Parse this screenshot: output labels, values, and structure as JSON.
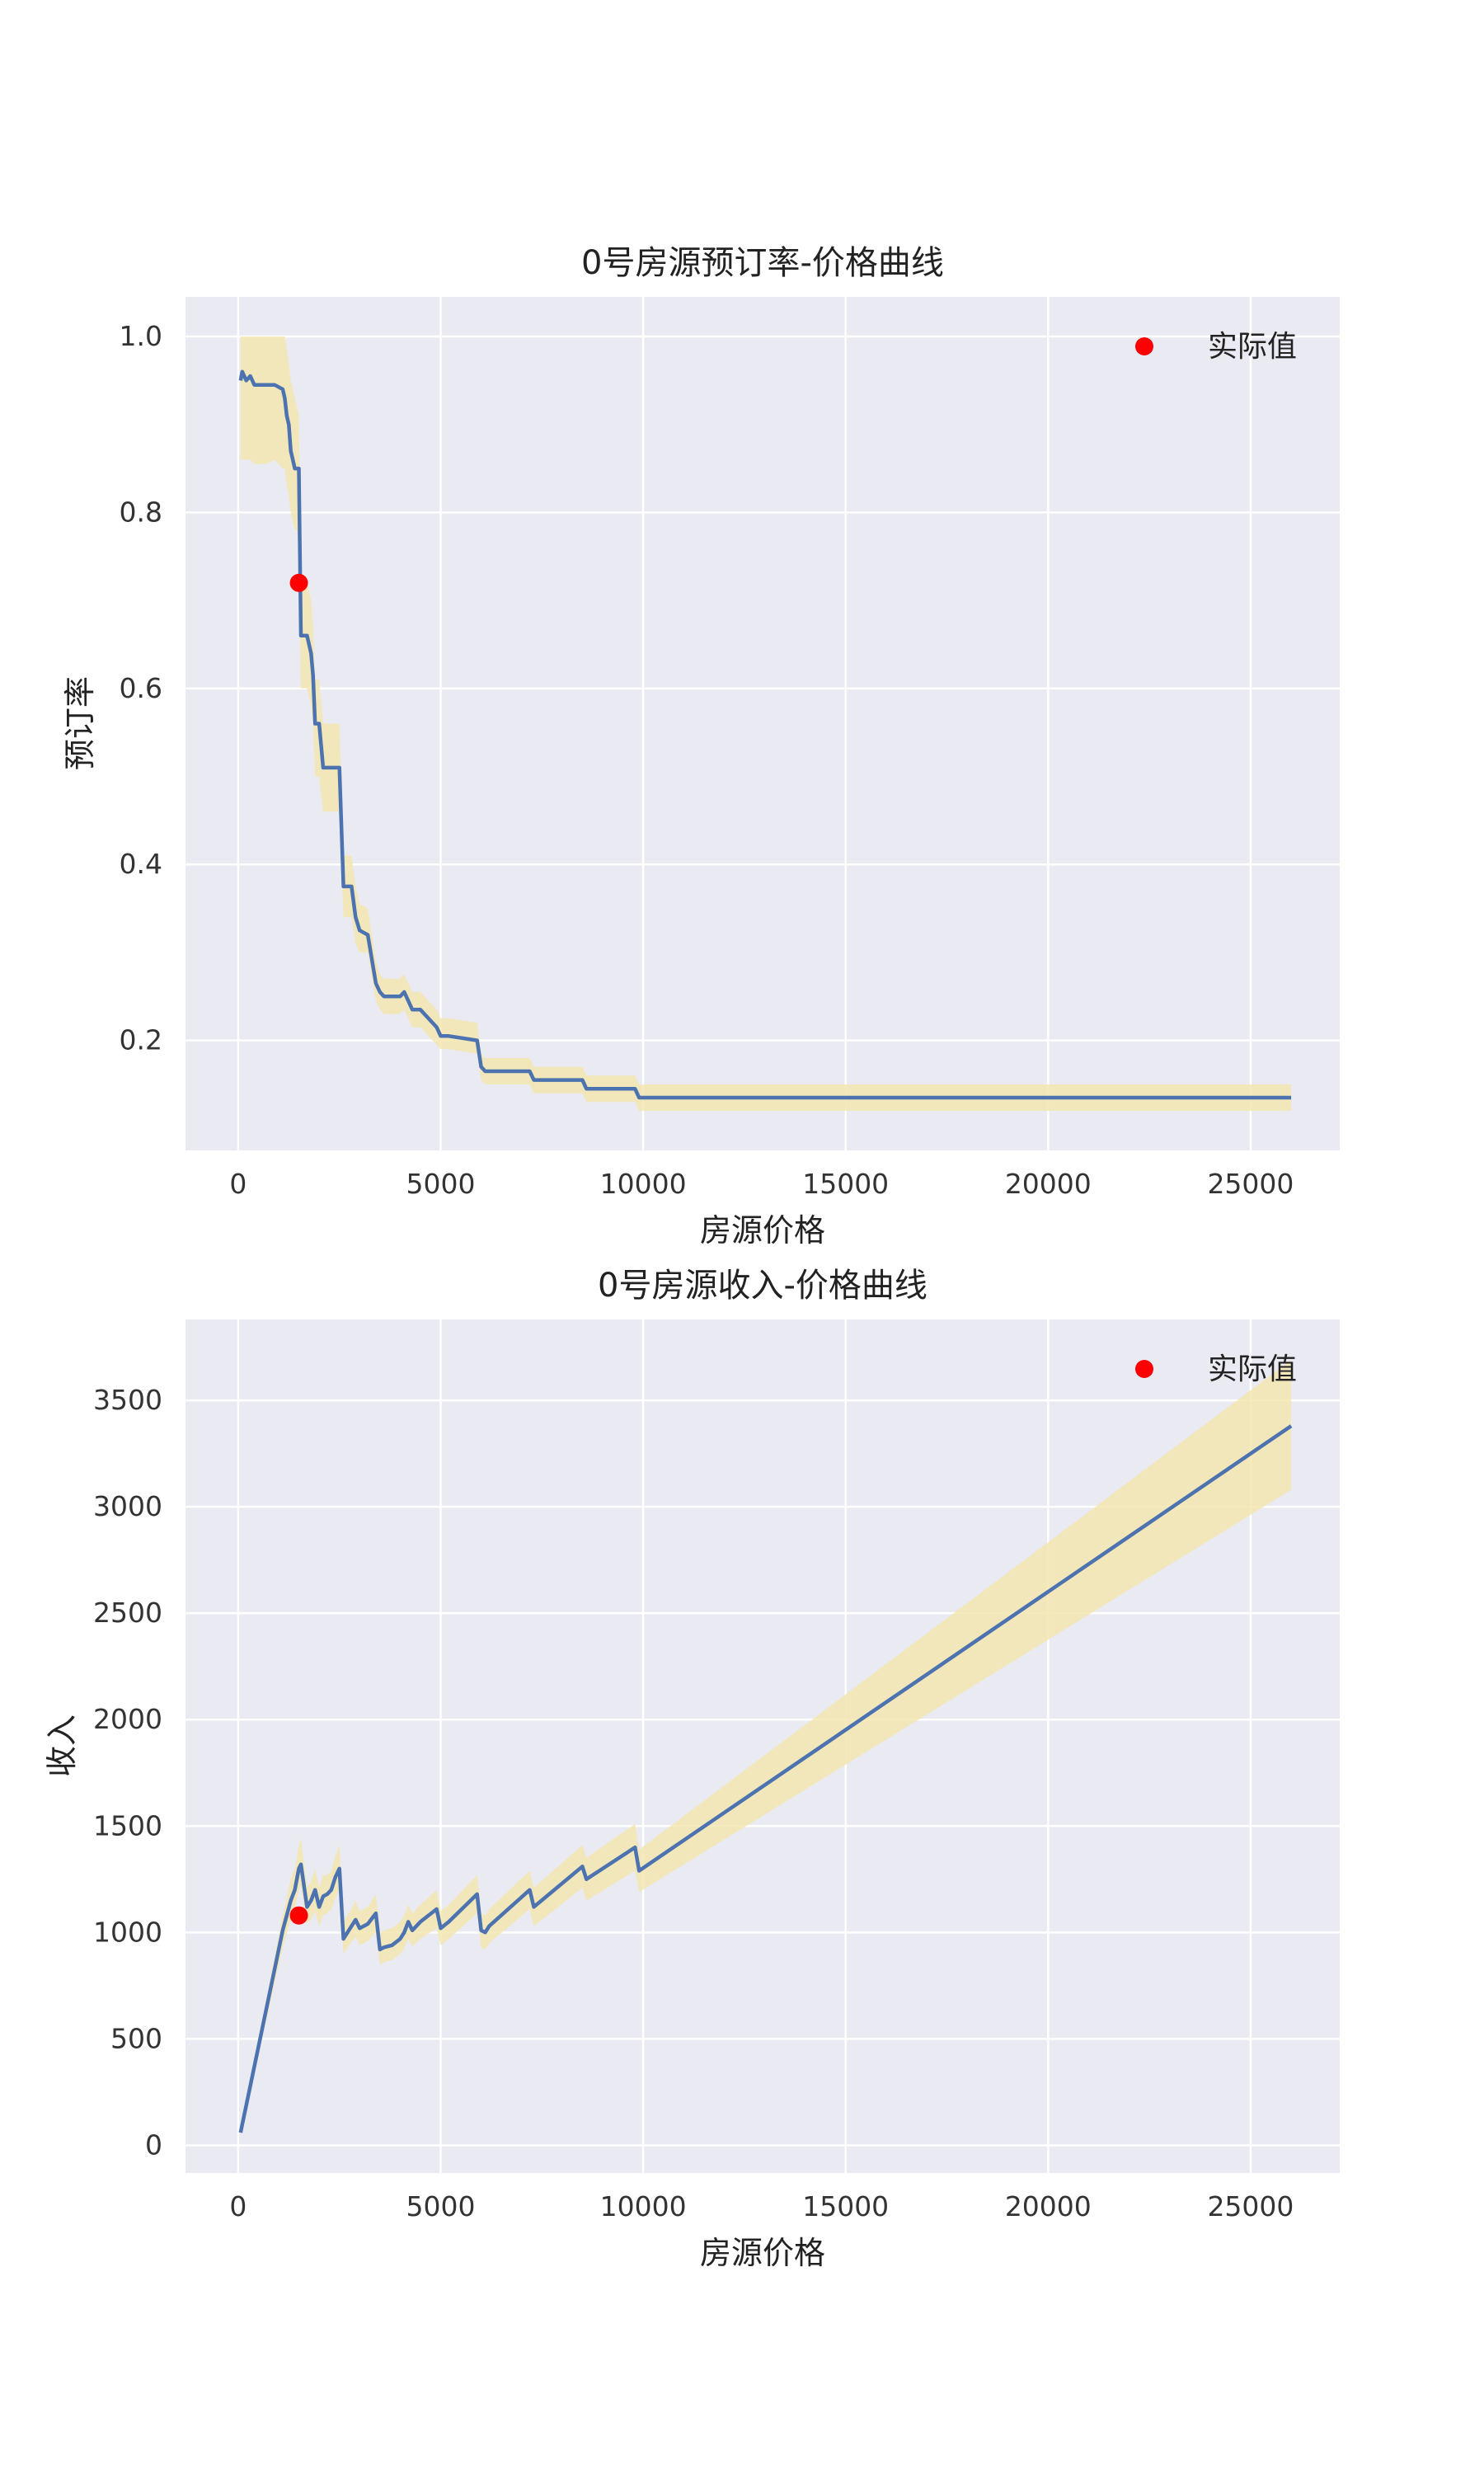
{
  "chart_data": [
    {
      "type": "line",
      "title": "0号房源预订率-价格曲线",
      "xlabel": "房源价格",
      "ylabel": "预订率",
      "xlim": [
        -1300,
        27200
      ],
      "ylim": [
        0.075,
        1.045
      ],
      "xticks": [
        0,
        5000,
        10000,
        15000,
        20000,
        25000
      ],
      "xtick_labels": [
        "0",
        "5000",
        "10000",
        "15000",
        "20000",
        "25000"
      ],
      "yticks": [
        0.2,
        0.4,
        0.6,
        0.8,
        1.0
      ],
      "ytick_labels": [
        "0.2",
        "0.4",
        "0.6",
        "0.8",
        "1.0"
      ],
      "grid": true,
      "legend": {
        "position": "top-right",
        "entries": [
          "实际值"
        ]
      },
      "colors": {
        "line": "#4c72b0",
        "band": "#f2e6b0",
        "point": "#ff0000",
        "background": "#eaeaf2"
      },
      "series": [
        {
          "kind": "line",
          "x": [
            60,
            100,
            200,
            300,
            400,
            500,
            700,
            900,
            1100,
            1150,
            1200,
            1250,
            1300,
            1400,
            1450,
            1500,
            1550,
            1600,
            1700,
            1800,
            1850,
            1900,
            2000,
            2100,
            2300,
            2500,
            2600,
            2700,
            2800,
            2900,
            3000,
            3200,
            3400,
            3500,
            3600,
            3800,
            4000,
            4100,
            4200,
            4300,
            4500,
            4900,
            5000,
            5200,
            5900,
            6000,
            6100,
            6200,
            7200,
            7300,
            8500,
            8600,
            9800,
            9900,
            26000
          ],
          "y": [
            0.95,
            0.96,
            0.95,
            0.955,
            0.945,
            0.945,
            0.945,
            0.945,
            0.94,
            0.93,
            0.91,
            0.9,
            0.87,
            0.85,
            0.85,
            0.85,
            0.66,
            0.66,
            0.66,
            0.64,
            0.615,
            0.56,
            0.56,
            0.51,
            0.51,
            0.51,
            0.375,
            0.375,
            0.375,
            0.34,
            0.325,
            0.32,
            0.265,
            0.255,
            0.25,
            0.25,
            0.25,
            0.255,
            0.245,
            0.235,
            0.235,
            0.215,
            0.205,
            0.205,
            0.2,
            0.17,
            0.165,
            0.165,
            0.165,
            0.155,
            0.155,
            0.145,
            0.145,
            0.135,
            0.135
          ],
          "lower": [
            0.86,
            0.86,
            0.86,
            0.86,
            0.855,
            0.855,
            0.855,
            0.86,
            0.85,
            0.85,
            0.83,
            0.82,
            0.8,
            0.78,
            0.78,
            0.76,
            0.6,
            0.6,
            0.6,
            0.58,
            0.56,
            0.5,
            0.5,
            0.46,
            0.46,
            0.46,
            0.34,
            0.34,
            0.34,
            0.31,
            0.3,
            0.3,
            0.245,
            0.235,
            0.23,
            0.23,
            0.23,
            0.235,
            0.225,
            0.215,
            0.215,
            0.195,
            0.19,
            0.19,
            0.185,
            0.155,
            0.15,
            0.15,
            0.15,
            0.14,
            0.14,
            0.13,
            0.13,
            0.12,
            0.12
          ],
          "upper": [
            1.0,
            1.0,
            1.0,
            1.0,
            1.0,
            1.0,
            1.0,
            1.0,
            1.0,
            1.0,
            0.985,
            0.97,
            0.95,
            0.93,
            0.92,
            0.91,
            0.72,
            0.72,
            0.72,
            0.7,
            0.67,
            0.61,
            0.61,
            0.56,
            0.56,
            0.56,
            0.41,
            0.41,
            0.41,
            0.375,
            0.355,
            0.35,
            0.29,
            0.275,
            0.27,
            0.27,
            0.27,
            0.275,
            0.265,
            0.255,
            0.255,
            0.235,
            0.225,
            0.225,
            0.22,
            0.185,
            0.18,
            0.18,
            0.18,
            0.17,
            0.17,
            0.16,
            0.16,
            0.15,
            0.15
          ]
        },
        {
          "kind": "point",
          "name": "实际值",
          "x": [
            1500
          ],
          "y": [
            0.72
          ]
        }
      ]
    },
    {
      "type": "line",
      "title": "0号房源收入-价格曲线",
      "xlabel": "房源价格",
      "ylabel": "收入",
      "xlim": [
        -1300,
        27200
      ],
      "ylim": [
        -130,
        3880
      ],
      "xticks": [
        0,
        5000,
        10000,
        15000,
        20000,
        25000
      ],
      "xtick_labels": [
        "0",
        "5000",
        "10000",
        "15000",
        "20000",
        "25000"
      ],
      "yticks": [
        0,
        500,
        1000,
        1500,
        2000,
        2500,
        3000,
        3500
      ],
      "ytick_labels": [
        "0",
        "500",
        "1000",
        "1500",
        "2000",
        "2500",
        "3000",
        "3500"
      ],
      "grid": true,
      "legend": {
        "position": "top-right",
        "entries": [
          "实际值"
        ]
      },
      "colors": {
        "line": "#4c72b0",
        "band": "#f2e6b0",
        "point": "#ff0000",
        "background": "#eaeaf2"
      },
      "series": [
        {
          "kind": "line",
          "x": [
            60,
            1100,
            1300,
            1400,
            1500,
            1550,
            1700,
            1800,
            1900,
            2000,
            2100,
            2200,
            2300,
            2400,
            2500,
            2600,
            2700,
            2800,
            2900,
            3000,
            3200,
            3400,
            3500,
            3600,
            3800,
            4000,
            4100,
            4200,
            4300,
            4500,
            4900,
            5000,
            5200,
            5900,
            6000,
            6100,
            6200,
            7200,
            7300,
            8500,
            8600,
            9800,
            9900,
            26000
          ],
          "y": [
            60,
            1010,
            1150,
            1200,
            1300,
            1320,
            1120,
            1150,
            1200,
            1120,
            1170,
            1180,
            1200,
            1260,
            1300,
            970,
            1000,
            1030,
            1060,
            1020,
            1040,
            1090,
            920,
            930,
            940,
            970,
            1000,
            1050,
            1010,
            1050,
            1110,
            1020,
            1050,
            1180,
            1010,
            1000,
            1030,
            1200,
            1120,
            1310,
            1250,
            1400,
            1290,
            3380
          ],
          "lower": [
            55,
            930,
            1060,
            1110,
            1200,
            1220,
            1040,
            1060,
            1100,
            1030,
            1080,
            1090,
            1110,
            1160,
            1200,
            900,
            930,
            955,
            980,
            940,
            960,
            1000,
            850,
            860,
            870,
            900,
            925,
            970,
            935,
            970,
            1020,
            940,
            970,
            1090,
            930,
            920,
            950,
            1110,
            1030,
            1210,
            1150,
            1290,
            1190,
            3080
          ],
          "upper": [
            65,
            1080,
            1250,
            1300,
            1410,
            1440,
            1210,
            1240,
            1300,
            1210,
            1270,
            1270,
            1290,
            1360,
            1410,
            1050,
            1080,
            1110,
            1150,
            1100,
            1120,
            1180,
            1000,
            1010,
            1020,
            1050,
            1080,
            1130,
            1090,
            1130,
            1200,
            1100,
            1130,
            1270,
            1090,
            1080,
            1110,
            1290,
            1210,
            1410,
            1350,
            1510,
            1390,
            3690
          ]
        },
        {
          "kind": "point",
          "name": "实际值",
          "x": [
            1500
          ],
          "y": [
            1080
          ]
        }
      ]
    }
  ]
}
